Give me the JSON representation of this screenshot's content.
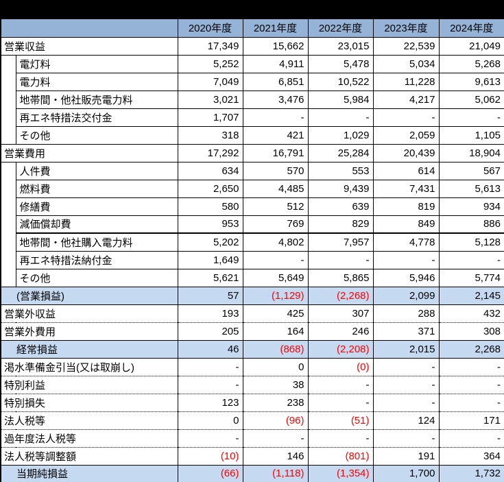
{
  "colors": {
    "page_bg": "#000000",
    "table_bg": "#FFFFFF",
    "header_bg": "#95B3D7",
    "highlight_bg": "#C5D9F1",
    "negative_text": "#FF0000",
    "text": "#000000",
    "border": "#000000"
  },
  "header": {
    "corner_label": "",
    "years": [
      "2020年度",
      "2021年度",
      "2022年度",
      "2023年度",
      "2024年度"
    ]
  },
  "rows": [
    {
      "label": "営業収益",
      "type": "parent",
      "border": "solid",
      "highlight": false,
      "values": [
        "17,349",
        "15,662",
        "23,015",
        "22,539",
        "21,049"
      ]
    },
    {
      "label": "電灯料",
      "type": "sub",
      "indent_span": 5,
      "border": "solid",
      "highlight": false,
      "values": [
        "5,252",
        "4,911",
        "5,478",
        "5,034",
        "5,268"
      ]
    },
    {
      "label": "電力料",
      "type": "sub",
      "border": "solid",
      "highlight": false,
      "values": [
        "7,049",
        "6,851",
        "10,522",
        "11,228",
        "9,613"
      ]
    },
    {
      "label": "地帯間・他社販売電力料",
      "type": "sub",
      "border": "solid",
      "highlight": false,
      "values": [
        "3,021",
        "3,476",
        "5,984",
        "4,217",
        "5,062"
      ]
    },
    {
      "label": "再エネ特措法交付金",
      "type": "sub",
      "border": "solid",
      "highlight": false,
      "values": [
        "1,707",
        "-",
        "-",
        "-",
        "-"
      ]
    },
    {
      "label": "その他",
      "type": "sub",
      "border": "solid",
      "highlight": false,
      "values": [
        "318",
        "421",
        "1,029",
        "2,059",
        "1,105"
      ]
    },
    {
      "label": "営業費用",
      "type": "parent",
      "border": "solid",
      "highlight": false,
      "values": [
        "17,292",
        "16,791",
        "25,284",
        "20,439",
        "18,904"
      ]
    },
    {
      "label": "人件費",
      "type": "sub",
      "indent_span": 7,
      "border": "solid",
      "highlight": false,
      "values": [
        "634",
        "570",
        "553",
        "614",
        "567"
      ]
    },
    {
      "label": "燃料費",
      "type": "sub",
      "border": "solid",
      "highlight": false,
      "values": [
        "2,650",
        "4,485",
        "9,439",
        "7,431",
        "5,613"
      ]
    },
    {
      "label": "修繕費",
      "type": "sub",
      "border": "solid",
      "highlight": false,
      "values": [
        "580",
        "512",
        "639",
        "819",
        "934"
      ]
    },
    {
      "label": "減価償却費",
      "type": "sub",
      "border": "thick",
      "highlight": false,
      "values": [
        "953",
        "769",
        "829",
        "849",
        "886"
      ]
    },
    {
      "label": "地帯間・他社購入電力料",
      "type": "sub",
      "border": "solid",
      "highlight": false,
      "values": [
        "5,202",
        "4,802",
        "7,957",
        "4,778",
        "5,128"
      ]
    },
    {
      "label": "再エネ特措法納付金",
      "type": "sub",
      "border": "solid",
      "highlight": false,
      "values": [
        "1,649",
        "-",
        "-",
        "-",
        "-"
      ]
    },
    {
      "label": "その他",
      "type": "sub",
      "border": "solid",
      "highlight": false,
      "values": [
        "5,621",
        "5,649",
        "5,865",
        "5,946",
        "5,774"
      ]
    },
    {
      "label": "(営業損益)",
      "type": "total",
      "border": "solid",
      "highlight": true,
      "values": [
        "57",
        "(1,129)",
        "(2,268)",
        "2,099",
        "2,145"
      ]
    },
    {
      "label": "営業外収益",
      "type": "plain",
      "border": "dotted",
      "highlight": false,
      "values": [
        "193",
        "425",
        "307",
        "288",
        "432"
      ]
    },
    {
      "label": "営業外費用",
      "type": "plain",
      "border": "solid",
      "highlight": false,
      "values": [
        "205",
        "164",
        "246",
        "371",
        "308"
      ]
    },
    {
      "label": "経常損益",
      "type": "total",
      "border": "solid",
      "highlight": true,
      "values": [
        "46",
        "(868)",
        "(2,208)",
        "2,015",
        "2,268"
      ]
    },
    {
      "label": "渇水準備金引当(又は取崩し)",
      "type": "plain",
      "border": "dotted",
      "highlight": false,
      "values": [
        "-",
        "0",
        "(0)",
        "-",
        "-"
      ]
    },
    {
      "label": "特別利益",
      "type": "plain",
      "border": "dotted",
      "highlight": false,
      "values": [
        "-",
        "38",
        "-",
        "-",
        "-"
      ]
    },
    {
      "label": "特別損失",
      "type": "plain",
      "border": "dotted",
      "highlight": false,
      "values": [
        "123",
        "238",
        "-",
        "-",
        "-"
      ]
    },
    {
      "label": "法人税等",
      "type": "plain",
      "border": "dotted",
      "highlight": false,
      "values": [
        "0",
        "(96)",
        "(51)",
        "124",
        "171"
      ]
    },
    {
      "label": "過年度法人税等",
      "type": "plain",
      "border": "dotted",
      "highlight": false,
      "values": [
        "-",
        "-",
        "-",
        "-",
        "-"
      ]
    },
    {
      "label": "法人税等調整額",
      "type": "plain",
      "border": "solid",
      "highlight": false,
      "values": [
        "(10)",
        "146",
        "(801)",
        "191",
        "364"
      ]
    },
    {
      "label": "当期純損益",
      "type": "total",
      "border": "none",
      "highlight": true,
      "values": [
        "(66)",
        "(1,118)",
        "(1,354)",
        "1,700",
        "1,732"
      ]
    }
  ]
}
